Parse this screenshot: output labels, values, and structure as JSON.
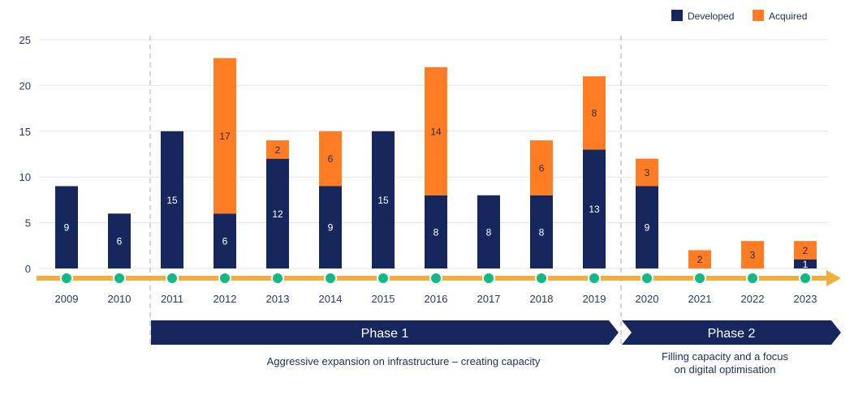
{
  "chart_data": {
    "type": "bar",
    "stacked": true,
    "categories": [
      "2009",
      "2010",
      "2011",
      "2012",
      "2013",
      "2014",
      "2015",
      "2016",
      "2017",
      "2018",
      "2019",
      "2020",
      "2021",
      "2022",
      "2023"
    ],
    "series": [
      {
        "name": "Developed",
        "color": "#16275e",
        "values": [
          9,
          6,
          15,
          6,
          12,
          9,
          15,
          8,
          8,
          8,
          13,
          9,
          0,
          0,
          1
        ]
      },
      {
        "name": "Acquired",
        "color": "#fd7c24",
        "values": [
          0,
          0,
          0,
          17,
          2,
          6,
          0,
          14,
          0,
          6,
          8,
          3,
          2,
          3,
          2
        ]
      }
    ],
    "ylim": [
      0,
      25
    ],
    "yticks": [
      "0",
      "5",
      "10",
      "15",
      "20",
      "25"
    ],
    "grid": true,
    "legend": "top-right",
    "timeline_color": "#f0b040",
    "marker_color": "#12b886",
    "phases": [
      {
        "label": "Phase 1",
        "start": "2011",
        "end": "2019",
        "description": [
          "Aggressive expansion on infrastructure – creating capacity"
        ]
      },
      {
        "label": "Phase 2",
        "start": "2020",
        "end": "2023",
        "description": [
          "Filling capacity and a focus",
          "on digital optimisation"
        ]
      }
    ]
  }
}
